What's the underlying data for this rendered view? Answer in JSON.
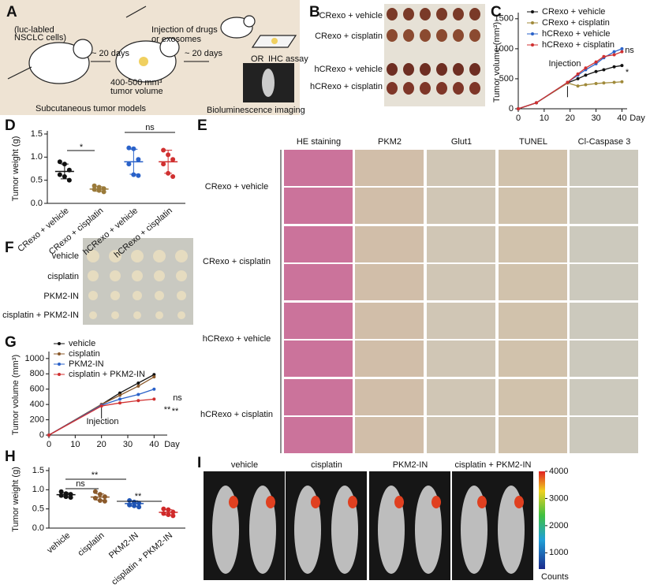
{
  "figure": {
    "panel_labels": [
      "A",
      "B",
      "C",
      "D",
      "E",
      "F",
      "G",
      "H",
      "I"
    ],
    "panel_a": {
      "texts": [
        "(luc-labled",
        "NSCLC cells)",
        "~ 20 days",
        "Injection of drugs",
        "or exosomes",
        "400-500 mm³",
        "tumor volume",
        "~ 20 days",
        "IHC assay",
        "OR",
        "Subcutaneous tumor models",
        "Bioluminescence imaging"
      ]
    },
    "panel_b": {
      "rows": [
        "CRexo + vehicle",
        "CRexo + cisplatin",
        "hCRexo + vehicle",
        "hCRexo + cisplatin"
      ]
    },
    "panel_e": {
      "columns": [
        "HE staining",
        "PKM2",
        "Glut1",
        "TUNEL",
        "Cl-Caspase 3"
      ],
      "rows": [
        "CRexo + vehicle",
        "CRexo + cisplatin",
        "hCRexo + vehicle",
        "hCRexo + cisplatin"
      ]
    },
    "panel_f": {
      "rows": [
        "vehicle",
        "cisplatin",
        "PKM2-IN",
        "cisplatin + PKM2-IN"
      ]
    },
    "panel_i": {
      "columns": [
        "vehicle",
        "cisplatin",
        "PKM2-IN",
        "cisplatin + PKM2-IN"
      ],
      "colorbar": {
        "lim": [
          400,
          4000
        ],
        "ticks": [
          1000,
          2000,
          3000,
          4000
        ],
        "label": "Counts"
      }
    }
  },
  "chart_data": [
    {
      "type": "line",
      "xlabel": "Day",
      "ylabel": "Tumor volume (mm³)",
      "x": [
        0,
        7,
        19,
        23,
        26,
        30,
        33,
        37,
        40
      ],
      "xlim": [
        0,
        42
      ],
      "ylim": [
        0,
        1550
      ],
      "xticks": [
        0,
        10,
        20,
        30,
        40
      ],
      "yticks": [
        0,
        500,
        1000,
        1500
      ],
      "legend": "top",
      "series": [
        {
          "name": "CRexo + vehicle",
          "color": "#111111",
          "values": [
            0,
            100,
            430,
            500,
            560,
            620,
            650,
            700,
            720
          ]
        },
        {
          "name": "CRexo + cisplatin",
          "color": "#a08a3a",
          "values": [
            0,
            100,
            430,
            380,
            400,
            420,
            430,
            440,
            450
          ]
        },
        {
          "name": "hCRexo + vehicle",
          "color": "#2a62c9",
          "values": [
            0,
            100,
            440,
            560,
            650,
            750,
            850,
            950,
            1000
          ]
        },
        {
          "name": "hCRexo + cisplatin",
          "color": "#d03030",
          "values": [
            0,
            100,
            440,
            580,
            680,
            780,
            870,
            900,
            950
          ]
        }
      ],
      "annotations": [
        {
          "text": "Injection",
          "color": "#000000"
        },
        {
          "text": "ns",
          "color": "#d03030"
        },
        {
          "text": "*",
          "color": "#a08a3a"
        }
      ]
    },
    {
      "type": "strip",
      "ylabel": "Tumor weight (g)",
      "categories": [
        "CRexo + vehicle",
        "CRexo + cisplatin",
        "hCRexo + vehicle",
        "hCRexo + cisplatin"
      ],
      "ylim": [
        0,
        1.5
      ],
      "yticks": [
        {
          "value": 0,
          "label": "0.0"
        },
        0.5,
        {
          "value": 1,
          "label": "1.0"
        },
        1.5
      ],
      "groups": [
        {
          "color": "#111111",
          "points": [
            0.9,
            0.85,
            0.72,
            0.62,
            0.58,
            0.5
          ],
          "mean": 0.69,
          "sd": 0.16
        },
        {
          "color": "#9a7a3a",
          "points": [
            0.38,
            0.35,
            0.32,
            0.3,
            0.28,
            0.25
          ],
          "mean": 0.31,
          "sd": 0.05
        },
        {
          "color": "#2a62c9",
          "points": [
            1.2,
            1.18,
            0.95,
            0.85,
            0.62,
            0.6
          ],
          "mean": 0.9,
          "sd": 0.27
        },
        {
          "color": "#d03030",
          "points": [
            1.15,
            1.05,
            0.95,
            0.85,
            0.65,
            0.58
          ],
          "mean": 0.9,
          "sd": 0.25
        }
      ],
      "annotations": [
        {
          "text": "*",
          "color": "#000000"
        },
        {
          "text": "ns",
          "color": "#000000"
        }
      ]
    },
    {
      "type": "line",
      "xlabel": "Day",
      "ylabel": "Tumor volume (mm³)",
      "x": [
        0,
        20,
        27,
        34,
        40
      ],
      "xlim": [
        0,
        45
      ],
      "ylim": [
        0,
        1050
      ],
      "xticks": [
        0,
        10,
        20,
        30,
        40
      ],
      "yticks": [
        0,
        200,
        400,
        600,
        800,
        1000
      ],
      "legend": "upper left",
      "series": [
        {
          "name": "vehicle",
          "color": "#111111",
          "values": [
            0,
            400,
            550,
            680,
            790
          ]
        },
        {
          "name": "cisplatin",
          "color": "#8b5a2b",
          "values": [
            0,
            400,
            520,
            640,
            760
          ]
        },
        {
          "name": "PKM2-IN",
          "color": "#2a62c9",
          "values": [
            0,
            390,
            470,
            530,
            600
          ]
        },
        {
          "name": "cisplatin + PKM2-IN",
          "color": "#d03030",
          "values": [
            0,
            380,
            420,
            450,
            470
          ]
        }
      ],
      "annotations": [
        {
          "text": "Injection",
          "color": "#000000"
        },
        {
          "text": "ns",
          "color": "#8b5a2b"
        },
        {
          "text": "**",
          "color": "#2a62c9"
        },
        {
          "text": "**",
          "color": "#d03030"
        }
      ]
    },
    {
      "type": "strip",
      "ylabel": "Tumor weight (g)",
      "categories": [
        "vehicle",
        "cisplatin",
        "PKM2-IN",
        "cisplatin + PKM2-IN"
      ],
      "ylim": [
        0,
        1.5
      ],
      "yticks": [
        {
          "value": 0,
          "label": "0.0"
        },
        0.5,
        {
          "value": 1,
          "label": "1.0"
        },
        1.5
      ],
      "groups": [
        {
          "color": "#111111",
          "points": [
            0.95,
            0.9,
            0.88,
            0.85,
            0.82,
            0.8
          ],
          "mean": 0.87,
          "sd": 0.05
        },
        {
          "color": "#8b5a2b",
          "points": [
            0.95,
            0.88,
            0.82,
            0.78,
            0.72,
            0.7
          ],
          "mean": 0.81,
          "sd": 0.08
        },
        {
          "color": "#1f55b5",
          "points": [
            0.72,
            0.68,
            0.65,
            0.6,
            0.58,
            0.55
          ],
          "mean": 0.64,
          "sd": 0.07
        },
        {
          "color": "#d02a2a",
          "points": [
            0.5,
            0.48,
            0.42,
            0.38,
            0.35,
            0.32
          ],
          "mean": 0.41,
          "sd": 0.07
        }
      ],
      "annotations": [
        {
          "text": "ns",
          "color": "#000000"
        },
        {
          "text": "**",
          "color": "#000000"
        },
        {
          "text": "**",
          "color": "#000000"
        }
      ]
    }
  ]
}
